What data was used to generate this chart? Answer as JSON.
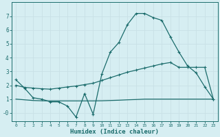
{
  "xlabel": "Humidex (Indice chaleur)",
  "bg_color": "#d6eef2",
  "grid_color": "#c8e0e6",
  "line_color": "#1a6b6b",
  "x_values": [
    0,
    1,
    2,
    3,
    4,
    5,
    6,
    7,
    8,
    9,
    10,
    11,
    12,
    13,
    14,
    15,
    16,
    17,
    18,
    19,
    20,
    21,
    22,
    23
  ],
  "main_line": [
    2.4,
    1.8,
    1.1,
    1.0,
    0.8,
    0.8,
    0.5,
    -0.3,
    1.4,
    -0.1,
    2.8,
    4.4,
    5.1,
    6.4,
    7.2,
    7.2,
    6.9,
    6.7,
    5.5,
    4.4,
    3.4,
    2.9,
    1.9,
    1.0
  ],
  "upper_line": [
    2.0,
    1.85,
    1.8,
    1.75,
    1.72,
    1.8,
    1.88,
    1.95,
    2.05,
    2.15,
    2.35,
    2.55,
    2.75,
    2.95,
    3.1,
    3.25,
    3.4,
    3.55,
    3.65,
    3.3,
    3.3,
    3.3,
    3.3,
    1.0
  ],
  "lower_line": [
    1.0,
    0.95,
    0.9,
    0.88,
    0.87,
    0.87,
    0.87,
    0.87,
    0.87,
    0.87,
    0.88,
    0.9,
    0.92,
    0.95,
    0.97,
    1.0,
    1.0,
    1.0,
    1.0,
    1.0,
    1.0,
    1.0,
    1.0,
    1.0
  ],
  "ylim": [
    -0.6,
    8.0
  ],
  "xlim": [
    -0.5,
    23.5
  ],
  "yticks": [
    0,
    1,
    2,
    3,
    4,
    5,
    6,
    7
  ],
  "ytick_labels": [
    "-0",
    "1",
    "2",
    "3",
    "4",
    "5",
    "6",
    "7"
  ],
  "xticks": [
    0,
    1,
    2,
    3,
    4,
    5,
    6,
    7,
    8,
    9,
    10,
    11,
    12,
    13,
    14,
    15,
    16,
    17,
    18,
    19,
    20,
    21,
    22,
    23
  ],
  "line_width": 0.9,
  "marker_size": 3.0
}
